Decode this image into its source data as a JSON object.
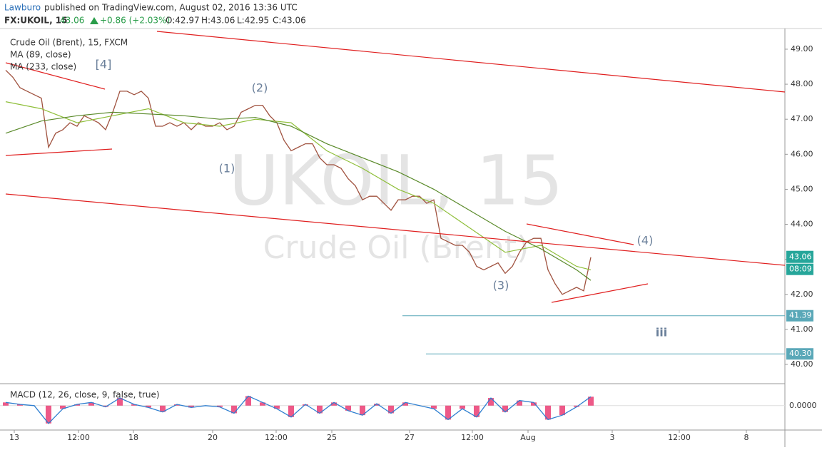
{
  "chart_data": {
    "type": "line",
    "header": {
      "publisher": "Lawburo",
      "published": "published on TradingView.com, August 02, 2016 13:36 UTC",
      "symbol": "FX:UKOIL, 15",
      "last": "43.06",
      "change": "+0.86 (+2.03%)",
      "ohlc": [
        "O:42.97",
        "H:43.06",
        "L:42.95",
        "C:43.06"
      ]
    },
    "title": "Crude Oil (Brent), 15, FXCM",
    "watermark": "UKOIL, 15",
    "watermark_sub": "Crude Oil (Brent)",
    "xlim": [
      -0.8,
      109.2
    ],
    "xticks": [
      {
        "value": 1.2,
        "label": "13"
      },
      {
        "value": 10.2,
        "label": "12:00"
      },
      {
        "value": 17.9,
        "label": "18"
      },
      {
        "value": 29,
        "label": "20"
      },
      {
        "value": 37.9,
        "label": "12:00"
      },
      {
        "value": 45.7,
        "label": "25"
      },
      {
        "value": 56.6,
        "label": "27"
      },
      {
        "value": 65.4,
        "label": "12:00"
      },
      {
        "value": 73.2,
        "label": "Aug"
      },
      {
        "value": 85,
        "label": "3"
      },
      {
        "value": 94.4,
        "label": "12:00"
      },
      {
        "value": 103.8,
        "label": "8"
      }
    ],
    "ylim": [
      39.47,
      49.59
    ],
    "yticks": [
      {
        "value": 40,
        "label": "40.00"
      },
      {
        "value": 41,
        "label": "41.00"
      },
      {
        "value": 42,
        "label": "42.00"
      },
      {
        "value": 43,
        "label": "43.00"
      },
      {
        "value": 44,
        "label": "44.00"
      },
      {
        "value": 45,
        "label": "45.00"
      },
      {
        "value": 46,
        "label": "46.00"
      },
      {
        "value": 47,
        "label": "47.00"
      },
      {
        "value": 48,
        "label": "48.00"
      },
      {
        "value": 49,
        "label": "49.00"
      }
    ],
    "series": [
      {
        "name": "Crude Oil (Brent)",
        "color": "#a0523f",
        "values": [
          48.4,
          48.2,
          47.9,
          47.8,
          47.7,
          47.6,
          46.2,
          46.6,
          46.7,
          46.9,
          46.8,
          47.1,
          47.0,
          46.9,
          46.7,
          47.2,
          47.8,
          47.8,
          47.7,
          47.8,
          47.6,
          46.8,
          46.8,
          46.9,
          46.8,
          46.9,
          46.7,
          46.9,
          46.8,
          46.8,
          46.9,
          46.7,
          46.8,
          47.2,
          47.3,
          47.4,
          47.4,
          47.1,
          46.9,
          46.4,
          46.1,
          46.2,
          46.3,
          46.3,
          45.9,
          45.7,
          45.7,
          45.6,
          45.3,
          45.1,
          44.7,
          44.8,
          44.8,
          44.6,
          44.4,
          44.7,
          44.7,
          44.8,
          44.8,
          44.6,
          44.7,
          43.6,
          43.5,
          43.4,
          43.4,
          43.2,
          42.8,
          42.7,
          42.8,
          42.9,
          42.6,
          42.8,
          43.2,
          43.5,
          43.6,
          43.6,
          42.7,
          42.3,
          42.0,
          42.1,
          42.2,
          42.1,
          43.06
        ]
      },
      {
        "name": "MA (89, close)",
        "color": "#8fbf3a",
        "x": [
          0,
          5,
          10,
          15,
          20,
          25,
          30,
          35,
          40,
          45,
          50,
          55,
          60,
          65,
          70,
          75,
          80,
          82
        ],
        "values": [
          47.5,
          47.3,
          46.9,
          47.1,
          47.3,
          46.9,
          46.8,
          47.0,
          46.9,
          46.1,
          45.6,
          45.0,
          44.6,
          43.9,
          43.2,
          43.4,
          42.8,
          42.7
        ]
      },
      {
        "name": "MA (233, close)",
        "color": "#5a8a2a",
        "x": [
          0,
          5,
          10,
          15,
          20,
          25,
          30,
          35,
          40,
          45,
          50,
          55,
          60,
          65,
          70,
          75,
          80,
          82
        ],
        "values": [
          46.6,
          46.95,
          47.1,
          47.2,
          47.15,
          47.1,
          47.0,
          47.05,
          46.8,
          46.3,
          45.9,
          45.5,
          45.0,
          44.4,
          43.8,
          43.3,
          42.7,
          42.4
        ]
      }
    ],
    "last_price": {
      "value": 43.06,
      "label": "43.06"
    },
    "countdown": "08:09",
    "hlines": [
      {
        "value": 41.39,
        "label": "41.39",
        "from": 55.6
      },
      {
        "value": 40.3,
        "label": "40.30",
        "from": 58.9
      }
    ],
    "annotations": [
      "[4]",
      "(1)",
      "(2)",
      "(3)",
      "(4)",
      "iii"
    ],
    "macd": {
      "name": "MACD (12, 26, close, 9, false, true)",
      "ylim": [
        -0.35,
        0.3
      ],
      "yticks": [
        {
          "value": 0,
          "label": "0.0000"
        }
      ],
      "x": [
        0,
        2,
        4,
        6,
        8,
        10,
        12,
        14,
        16,
        18,
        20,
        22,
        24,
        26,
        28,
        30,
        32,
        34,
        36,
        38,
        40,
        42,
        44,
        46,
        48,
        50,
        52,
        54,
        56,
        58,
        60,
        62,
        64,
        66,
        68,
        70,
        72,
        74,
        76,
        78,
        80,
        82
      ],
      "values": [
        0.05,
        0.02,
        0.0,
        -0.28,
        -0.05,
        0.02,
        0.05,
        -0.02,
        0.12,
        0.02,
        -0.03,
        -0.1,
        0.02,
        -0.03,
        0.0,
        -0.02,
        -0.12,
        0.15,
        0.05,
        -0.05,
        -0.18,
        0.02,
        -0.12,
        0.05,
        -0.08,
        -0.15,
        0.03,
        -0.12,
        0.05,
        0.0,
        -0.05,
        -0.22,
        -0.05,
        -0.18,
        0.12,
        -0.1,
        0.08,
        0.05,
        -0.22,
        -0.15,
        -0.02,
        0.14
      ],
      "color": "#2f7fd0",
      "hist_color": "#e8306a"
    }
  }
}
